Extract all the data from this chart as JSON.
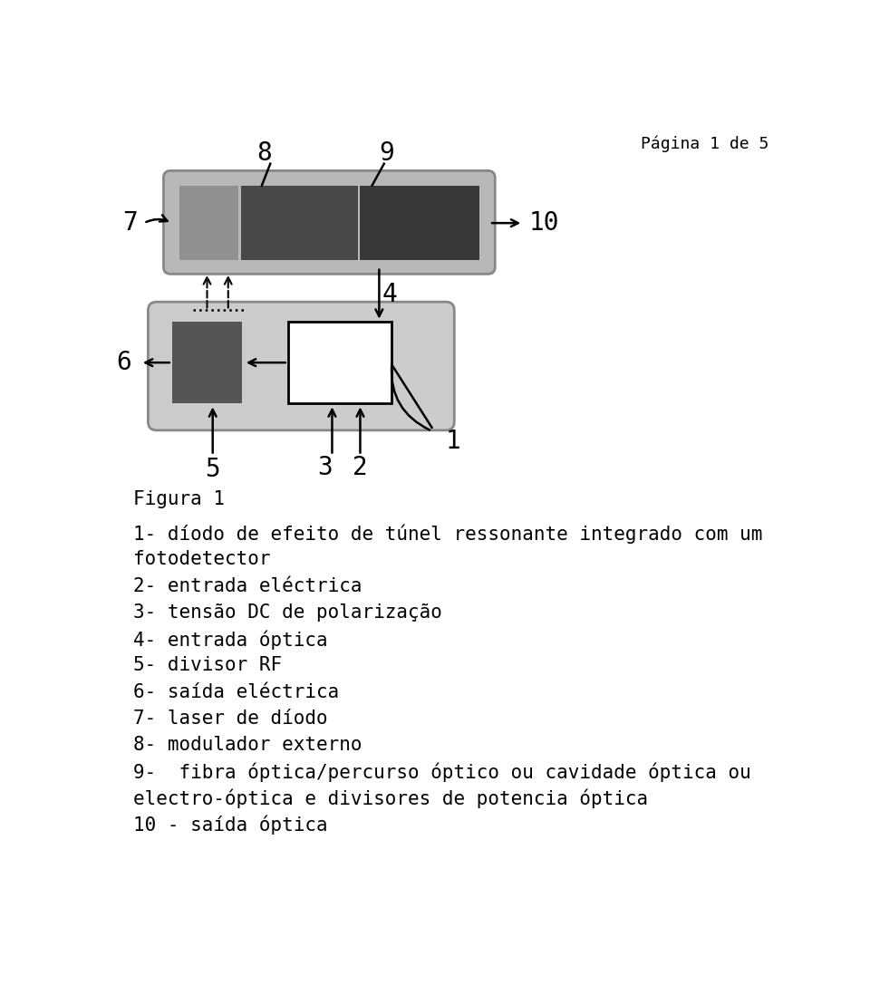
{
  "page_label": "Página 1 de 5",
  "figura_label": "Figura 1",
  "bg_color": "#ffffff",
  "top_box_bg": "#b8b8b8",
  "top_box_border": "#888888",
  "top_inner_left_color": "#909090",
  "top_inner_mid_color": "#484848",
  "top_inner_right_color": "#383838",
  "bottom_box_bg": "#cccccc",
  "bottom_box_border": "#888888",
  "dark_square_color": "#545454",
  "white_square_color": "#ffffff",
  "white_square_border": "#000000",
  "arrow_color": "#000000",
  "label_fontsize": 20,
  "text_fontsize": 15,
  "page_fontsize": 13,
  "figura_fontsize": 15,
  "descriptions": [
    "1- díodo de efeito de túnel ressonante integrado com um",
    "fotodetector",
    "2- entrada eléctrica",
    "3- tensão DC de polarização",
    "4- entrada óptica",
    "5- divisor RF",
    "6- saída eléctrica",
    "7- laser de díodo",
    "8- modulador externo",
    "9-  fibra óptica/percurso óptico ou cavidade óptica ou",
    "electro-óptica e divisores de potencia óptica",
    "10 - saída óptica"
  ]
}
